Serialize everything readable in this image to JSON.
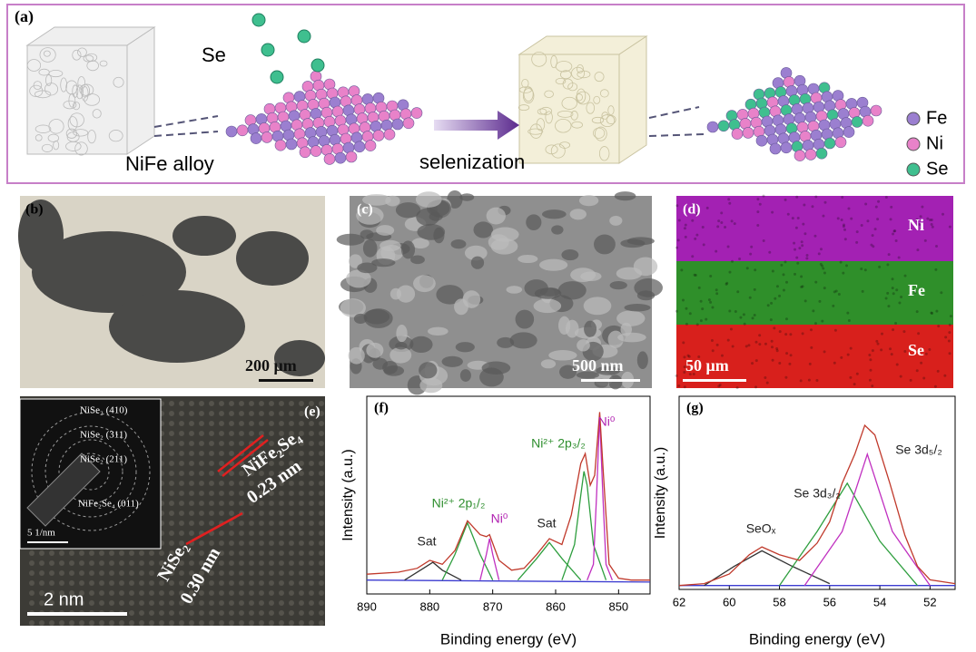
{
  "panel_a": {
    "label": "(a)",
    "se_label": "Se",
    "alloy_label": "NiFe alloy",
    "process_label": "selenization",
    "legend": [
      "Fe",
      "Ni",
      "Se"
    ]
  },
  "panel_b": {
    "label": "(b)",
    "scale_bar": "200 μm"
  },
  "panel_c": {
    "label": "(c)",
    "scale_bar": "500 nm"
  },
  "panel_d": {
    "label": "(d)",
    "maps": [
      "Ni",
      "Fe",
      "Se"
    ],
    "scale_bar": "50 μm"
  },
  "panel_e": {
    "label": "(e)",
    "inset_rings": [
      "NiSe₂ (410)",
      "NiSe₂ (311)",
      "NiSe₂ (211)",
      "NiFe₂Se₄ (011)"
    ],
    "inset_scale": "5 1/nm",
    "spacings": [
      {
        "phase": "NiFe₂Se₄",
        "d": "0.23 nm"
      },
      {
        "phase": "NiSe₂",
        "d": "0.30 nm"
      }
    ],
    "scale_bar": "2 nm"
  },
  "chart_data": [
    {
      "type": "line",
      "panel_label": "(f)",
      "ylabel": "Intensity (a.u.)",
      "xlabel": "Binding energy (eV)",
      "xlim": [
        890,
        845
      ],
      "xticks": [
        890,
        880,
        870,
        860,
        850
      ],
      "ylim": [
        0,
        100
      ],
      "annotations": [
        "Sat",
        "Ni²⁺ 2p₁/₂",
        "Ni⁰",
        "Sat",
        "Ni²⁺ 2p₃/₂",
        "Ni⁰"
      ],
      "series": [
        {
          "color": "#3b3bd0",
          "x": [
            890,
            845
          ],
          "values": [
            7,
            6
          ]
        },
        {
          "color": "#333333",
          "x": [
            884,
            881,
            879.5,
            878,
            875
          ],
          "values": [
            7,
            13,
            16,
            12,
            7
          ]
        },
        {
          "color": "#2e9e3e",
          "x": [
            878,
            876,
            874,
            872,
            870
          ],
          "values": [
            7,
            20,
            36,
            20,
            7
          ]
        },
        {
          "color": "#c030c0",
          "x": [
            872,
            871,
            870.5,
            870,
            869
          ],
          "values": [
            7,
            20,
            28,
            20,
            7
          ]
        },
        {
          "color": "#2e9e3e",
          "x": [
            866,
            863,
            861,
            859,
            856
          ],
          "values": [
            7,
            18,
            26,
            18,
            7
          ]
        },
        {
          "color": "#2e9e3e",
          "x": [
            859,
            857,
            856,
            855.5,
            855,
            854,
            852
          ],
          "values": [
            7,
            25,
            50,
            62,
            55,
            25,
            7
          ]
        },
        {
          "color": "#c030c0",
          "x": [
            855,
            854,
            853.5,
            853,
            852.5,
            852,
            851
          ],
          "values": [
            7,
            15,
            50,
            90,
            50,
            15,
            7
          ]
        },
        {
          "color": "#c0392b",
          "x": [
            890,
            885,
            882,
            880,
            878,
            876,
            874,
            872,
            871,
            870.5,
            869,
            867,
            865,
            863,
            861,
            859,
            857.5,
            856,
            855.3,
            854.5,
            853.8,
            853,
            852.4,
            851.5,
            850,
            848,
            845
          ],
          "values": [
            10,
            11,
            13,
            17,
            15,
            22,
            37,
            30,
            29,
            30,
            17,
            12,
            13,
            20,
            28,
            25,
            40,
            66,
            71,
            55,
            60,
            92,
            60,
            15,
            8,
            7,
            7
          ]
        }
      ]
    },
    {
      "type": "line",
      "panel_label": "(g)",
      "ylabel": "Intensity (a.u.)",
      "xlabel": "Binding energy (eV)",
      "xlim": [
        62,
        51
      ],
      "xticks": [
        62,
        60,
        58,
        56,
        54,
        52
      ],
      "ylim": [
        0,
        100
      ],
      "annotations": [
        "SeOₓ",
        "Se 3d₃/₂",
        "Se 3d₅/₂"
      ],
      "series": [
        {
          "color": "#3b3bd0",
          "x": [
            62,
            51
          ],
          "values": [
            2,
            2
          ]
        },
        {
          "color": "#333333",
          "x": [
            61,
            59.8,
            58.7,
            57.5,
            56
          ],
          "values": [
            2,
            12,
            20,
            12,
            3
          ]
        },
        {
          "color": "#2e9e3e",
          "x": [
            58,
            56.5,
            55.3,
            54,
            52.5
          ],
          "values": [
            2,
            30,
            55,
            25,
            2
          ]
        },
        {
          "color": "#c030c0",
          "x": [
            57,
            55.5,
            54.5,
            53.5,
            52
          ],
          "values": [
            2,
            30,
            70,
            30,
            2
          ]
        },
        {
          "color": "#c0392b",
          "x": [
            62,
            61,
            60,
            59.2,
            58.7,
            58,
            57.2,
            56.5,
            56,
            55.5,
            55,
            54.6,
            54.2,
            53.6,
            53,
            52.5,
            52,
            51
          ],
          "values": [
            2,
            3,
            8,
            18,
            22,
            18,
            15,
            24,
            35,
            55,
            70,
            85,
            80,
            55,
            28,
            12,
            5,
            3
          ]
        }
      ]
    }
  ]
}
